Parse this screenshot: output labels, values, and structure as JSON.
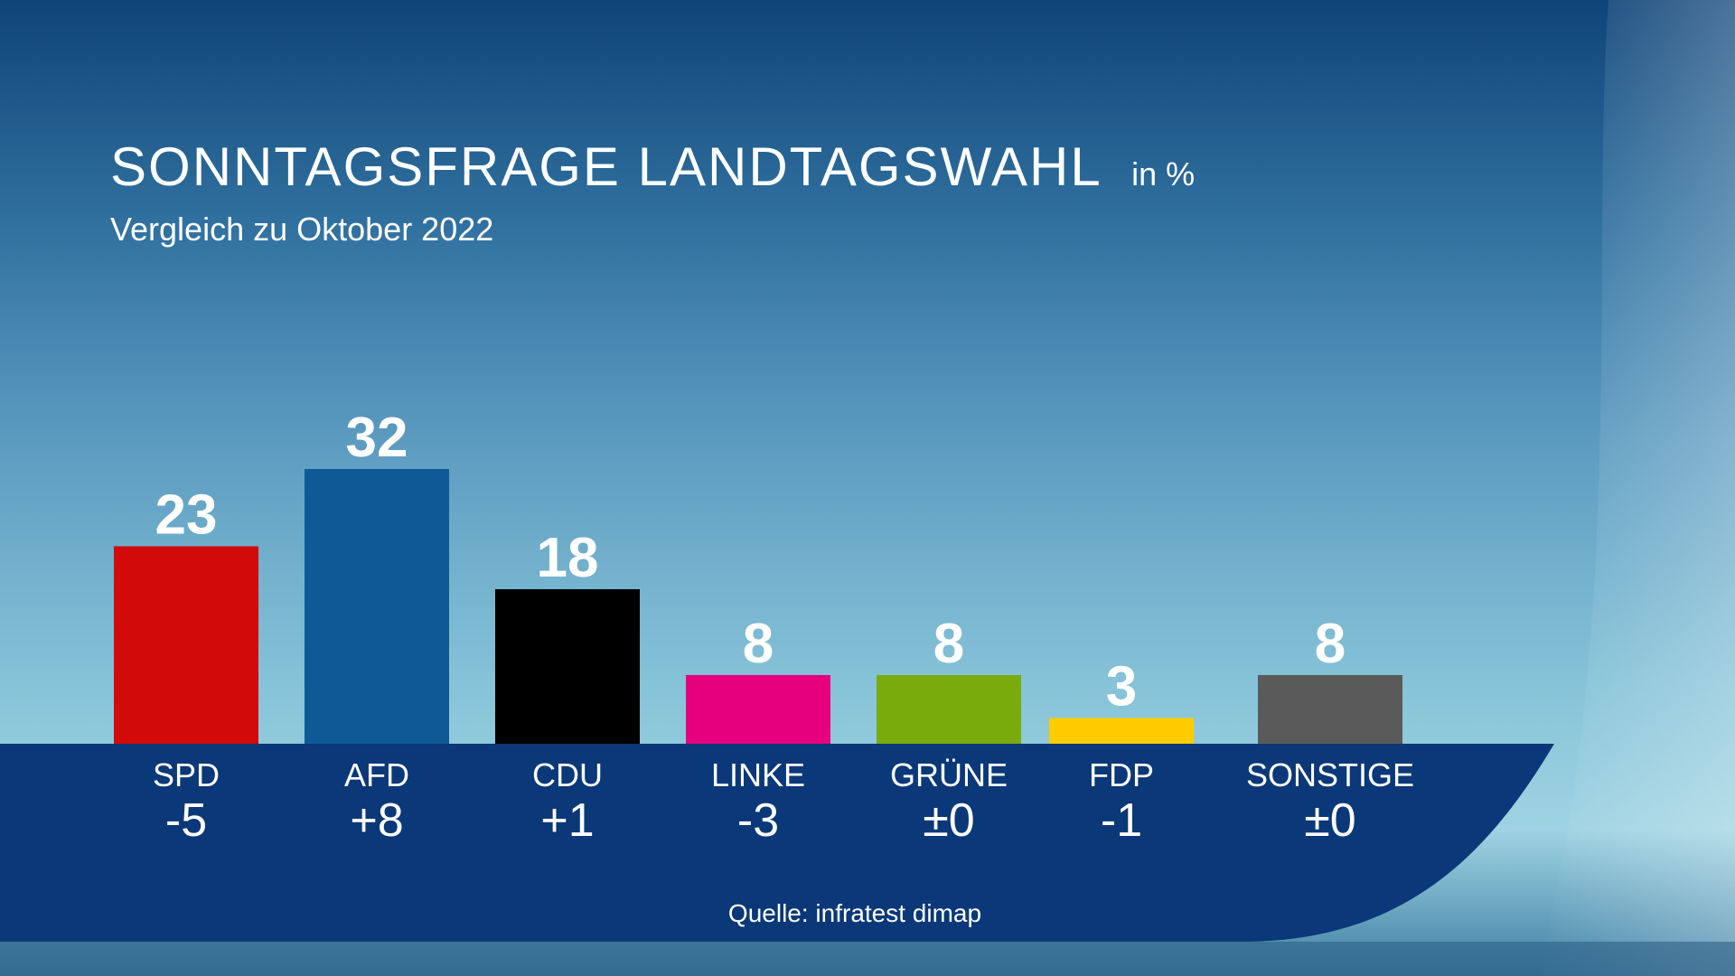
{
  "header": {
    "title": "SONNTAGSFRAGE LANDTAGSWAHL",
    "unit": "in %",
    "subtitle": "Vergleich zu Oktober 2022"
  },
  "footer": {
    "source": "Quelle: infratest dimap"
  },
  "chart_data": {
    "type": "bar",
    "title": "SONNTAGSFRAGE LANDTAGSWAHL",
    "unit": "in %",
    "subtitle": "Vergleich zu Oktober 2022",
    "categories": [
      "SPD",
      "AFD",
      "CDU",
      "LINKE",
      "GRÜNE",
      "FDP",
      "SONSTIGE"
    ],
    "values": [
      23,
      32,
      18,
      8,
      8,
      3,
      8
    ],
    "value_labels": [
      "23",
      "32",
      "18",
      "8",
      "8",
      "3",
      "8"
    ],
    "changes": [
      "-5",
      "+8",
      "+1",
      "-3",
      "±0",
      "-1",
      "±0"
    ],
    "colors": [
      "#d30a0a",
      "#0d5a96",
      "#000000",
      "#e6007e",
      "#7aab0c",
      "#ffcc00",
      "#5a5a5a"
    ],
    "ylim": [
      0,
      32
    ],
    "grid": false,
    "legend": "none",
    "source": "Quelle: infratest dimap"
  }
}
